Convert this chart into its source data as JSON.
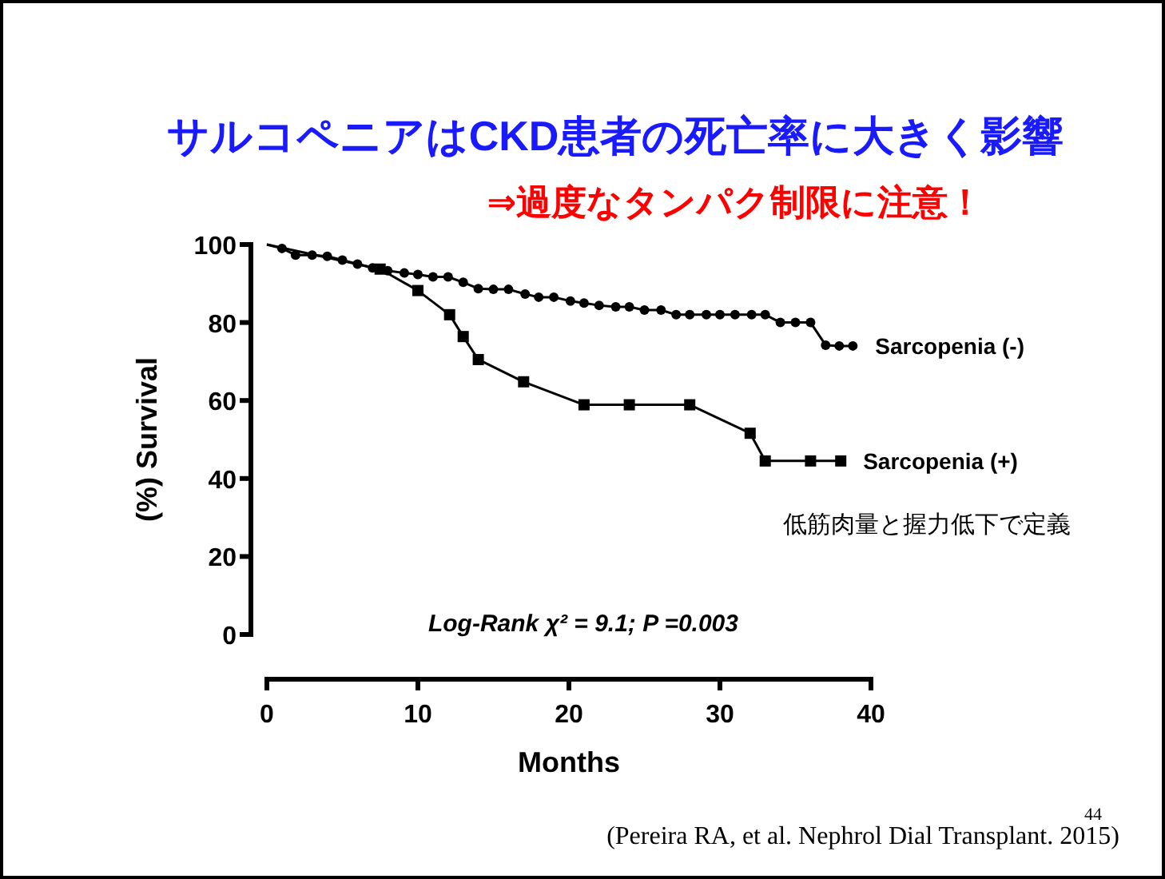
{
  "chart_data": {
    "type": "line",
    "title": "サルコペニアはCKD患者の死亡率に大きく影響",
    "subtitle": "⇒過度なタンパク制限に注意！",
    "xlabel": "Months",
    "ylabel": "(%) Survival",
    "xlim": [
      0,
      40
    ],
    "xticks": [
      0,
      10,
      20,
      30,
      40
    ],
    "ylim": [
      0,
      100
    ],
    "yticks": [
      0,
      20,
      40,
      60,
      80,
      100
    ],
    "grid": false,
    "legend": false,
    "series": [
      {
        "name": "Sarcopenia (-)",
        "color": "#000000",
        "marker": "circle",
        "x": [
          0,
          1,
          1.9,
          3,
          4,
          5,
          6,
          7,
          8,
          9.1,
          10,
          11,
          12,
          13,
          14,
          15,
          16,
          17.1,
          18,
          19,
          20.1,
          21,
          22,
          23.1,
          24,
          25,
          26.1,
          27.1,
          28,
          29.1,
          30,
          31,
          32.1,
          33,
          34,
          35,
          36,
          37,
          37.9,
          38.8
        ],
        "values": [
          100,
          99,
          97.3,
          97.3,
          97,
          96,
          95,
          94,
          93.3,
          92.7,
          92.3,
          91.7,
          91.7,
          90.3,
          88.7,
          88.5,
          88.5,
          87.3,
          86.5,
          86.5,
          85.5,
          85,
          84.4,
          84,
          84,
          83.2,
          83.2,
          82,
          82,
          82,
          82,
          82,
          82,
          82,
          80,
          80,
          80,
          74.2,
          74,
          74
        ]
      },
      {
        "name": "Sarcopenia (+)",
        "color": "#000000",
        "marker": "square",
        "x": [
          0,
          7.5,
          10,
          12.1,
          13,
          14,
          17,
          21,
          24,
          28,
          32,
          33,
          36,
          38
        ],
        "values": [
          100,
          93.7,
          88.2,
          82,
          76.4,
          70.5,
          64.8,
          58.9,
          58.9,
          58.9,
          51.6,
          44.5,
          44.5,
          44.5
        ]
      }
    ],
    "annotations": [
      "低筋肉量と握力低下で定義",
      "Log-Rank χ² = 9.1; P =0.003",
      "(Pereira RA, et al. Nephrol Dial Transplant. 2015)",
      "44"
    ]
  }
}
